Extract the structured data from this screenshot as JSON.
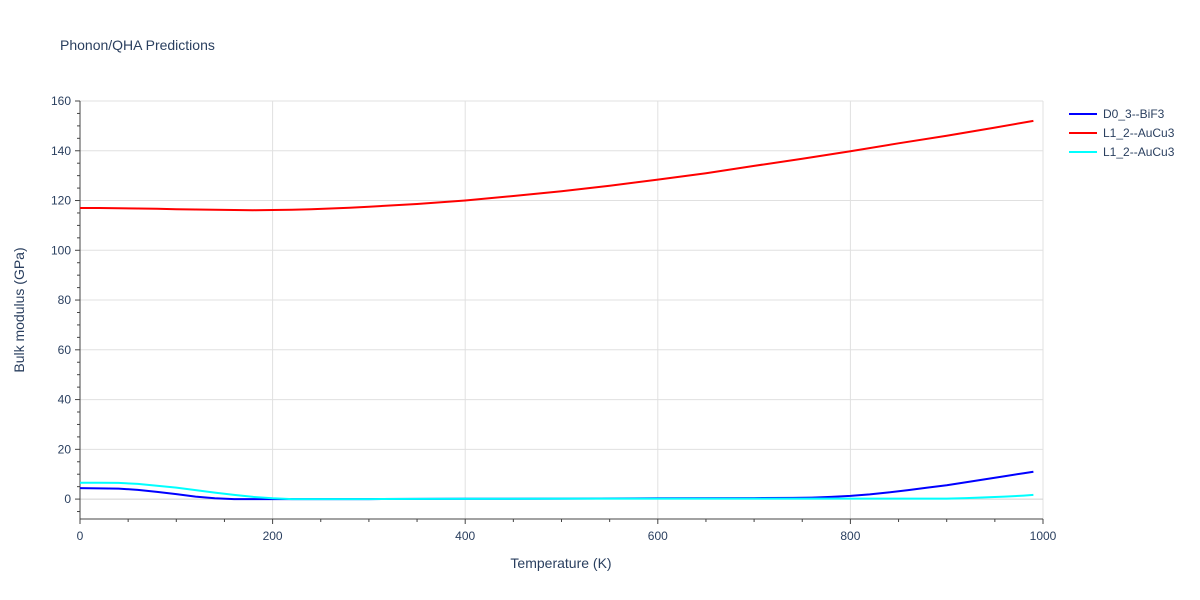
{
  "chart_data": {
    "type": "line",
    "title": "Phonon/QHA Predictions",
    "xlabel": "Temperature (K)",
    "ylabel": "Bulk modulus (GPa)",
    "xlim": [
      0,
      1000
    ],
    "ylim": [
      -8,
      160
    ],
    "xticks": [
      0,
      200,
      400,
      600,
      800,
      1000
    ],
    "yticks": [
      0,
      20,
      40,
      60,
      80,
      100,
      120,
      140,
      160
    ],
    "grid": true,
    "legend_position": "top-right",
    "series": [
      {
        "name": "D0_3--BiF3",
        "color": "#0000ff",
        "x": [
          0,
          20,
          40,
          60,
          80,
          100,
          120,
          140,
          160,
          180,
          200,
          220,
          240,
          300,
          400,
          500,
          600,
          700,
          740,
          760,
          780,
          800,
          820,
          840,
          860,
          880,
          900,
          920,
          940,
          960,
          980,
          990
        ],
        "y": [
          4.4,
          4.3,
          4.2,
          3.7,
          2.9,
          2.0,
          1.0,
          0.3,
          0.0,
          0.0,
          0.0,
          0.0,
          0.0,
          0.0,
          0.1,
          0.2,
          0.3,
          0.4,
          0.5,
          0.6,
          0.9,
          1.3,
          1.9,
          2.7,
          3.6,
          4.6,
          5.6,
          6.8,
          8.0,
          9.2,
          10.4,
          11.0
        ]
      },
      {
        "name": "L1_2--AuCu3",
        "color": "#ff0000",
        "x": [
          0,
          20,
          40,
          60,
          80,
          100,
          120,
          140,
          160,
          180,
          200,
          220,
          240,
          260,
          280,
          300,
          350,
          400,
          450,
          500,
          550,
          600,
          650,
          700,
          750,
          800,
          850,
          900,
          950,
          990
        ],
        "y": [
          117.0,
          117.0,
          116.9,
          116.8,
          116.7,
          116.5,
          116.4,
          116.3,
          116.2,
          116.1,
          116.2,
          116.3,
          116.5,
          116.8,
          117.1,
          117.5,
          118.6,
          120.0,
          121.8,
          123.7,
          125.9,
          128.4,
          131.0,
          133.9,
          136.8,
          139.8,
          143.0,
          146.0,
          149.3,
          152.0
        ]
      },
      {
        "name": "L1_2--AuCu3",
        "color": "#00ffff",
        "x": [
          0,
          20,
          40,
          60,
          80,
          100,
          120,
          140,
          160,
          180,
          200,
          220,
          240,
          300,
          400,
          500,
          600,
          700,
          800,
          850,
          900,
          920,
          940,
          960,
          980,
          990
        ],
        "y": [
          6.6,
          6.6,
          6.5,
          6.1,
          5.4,
          4.6,
          3.6,
          2.6,
          1.7,
          0.9,
          0.3,
          0.0,
          0.0,
          0.0,
          0.1,
          0.2,
          0.2,
          0.2,
          0.2,
          0.2,
          0.2,
          0.4,
          0.7,
          1.0,
          1.4,
          1.7
        ]
      }
    ]
  }
}
